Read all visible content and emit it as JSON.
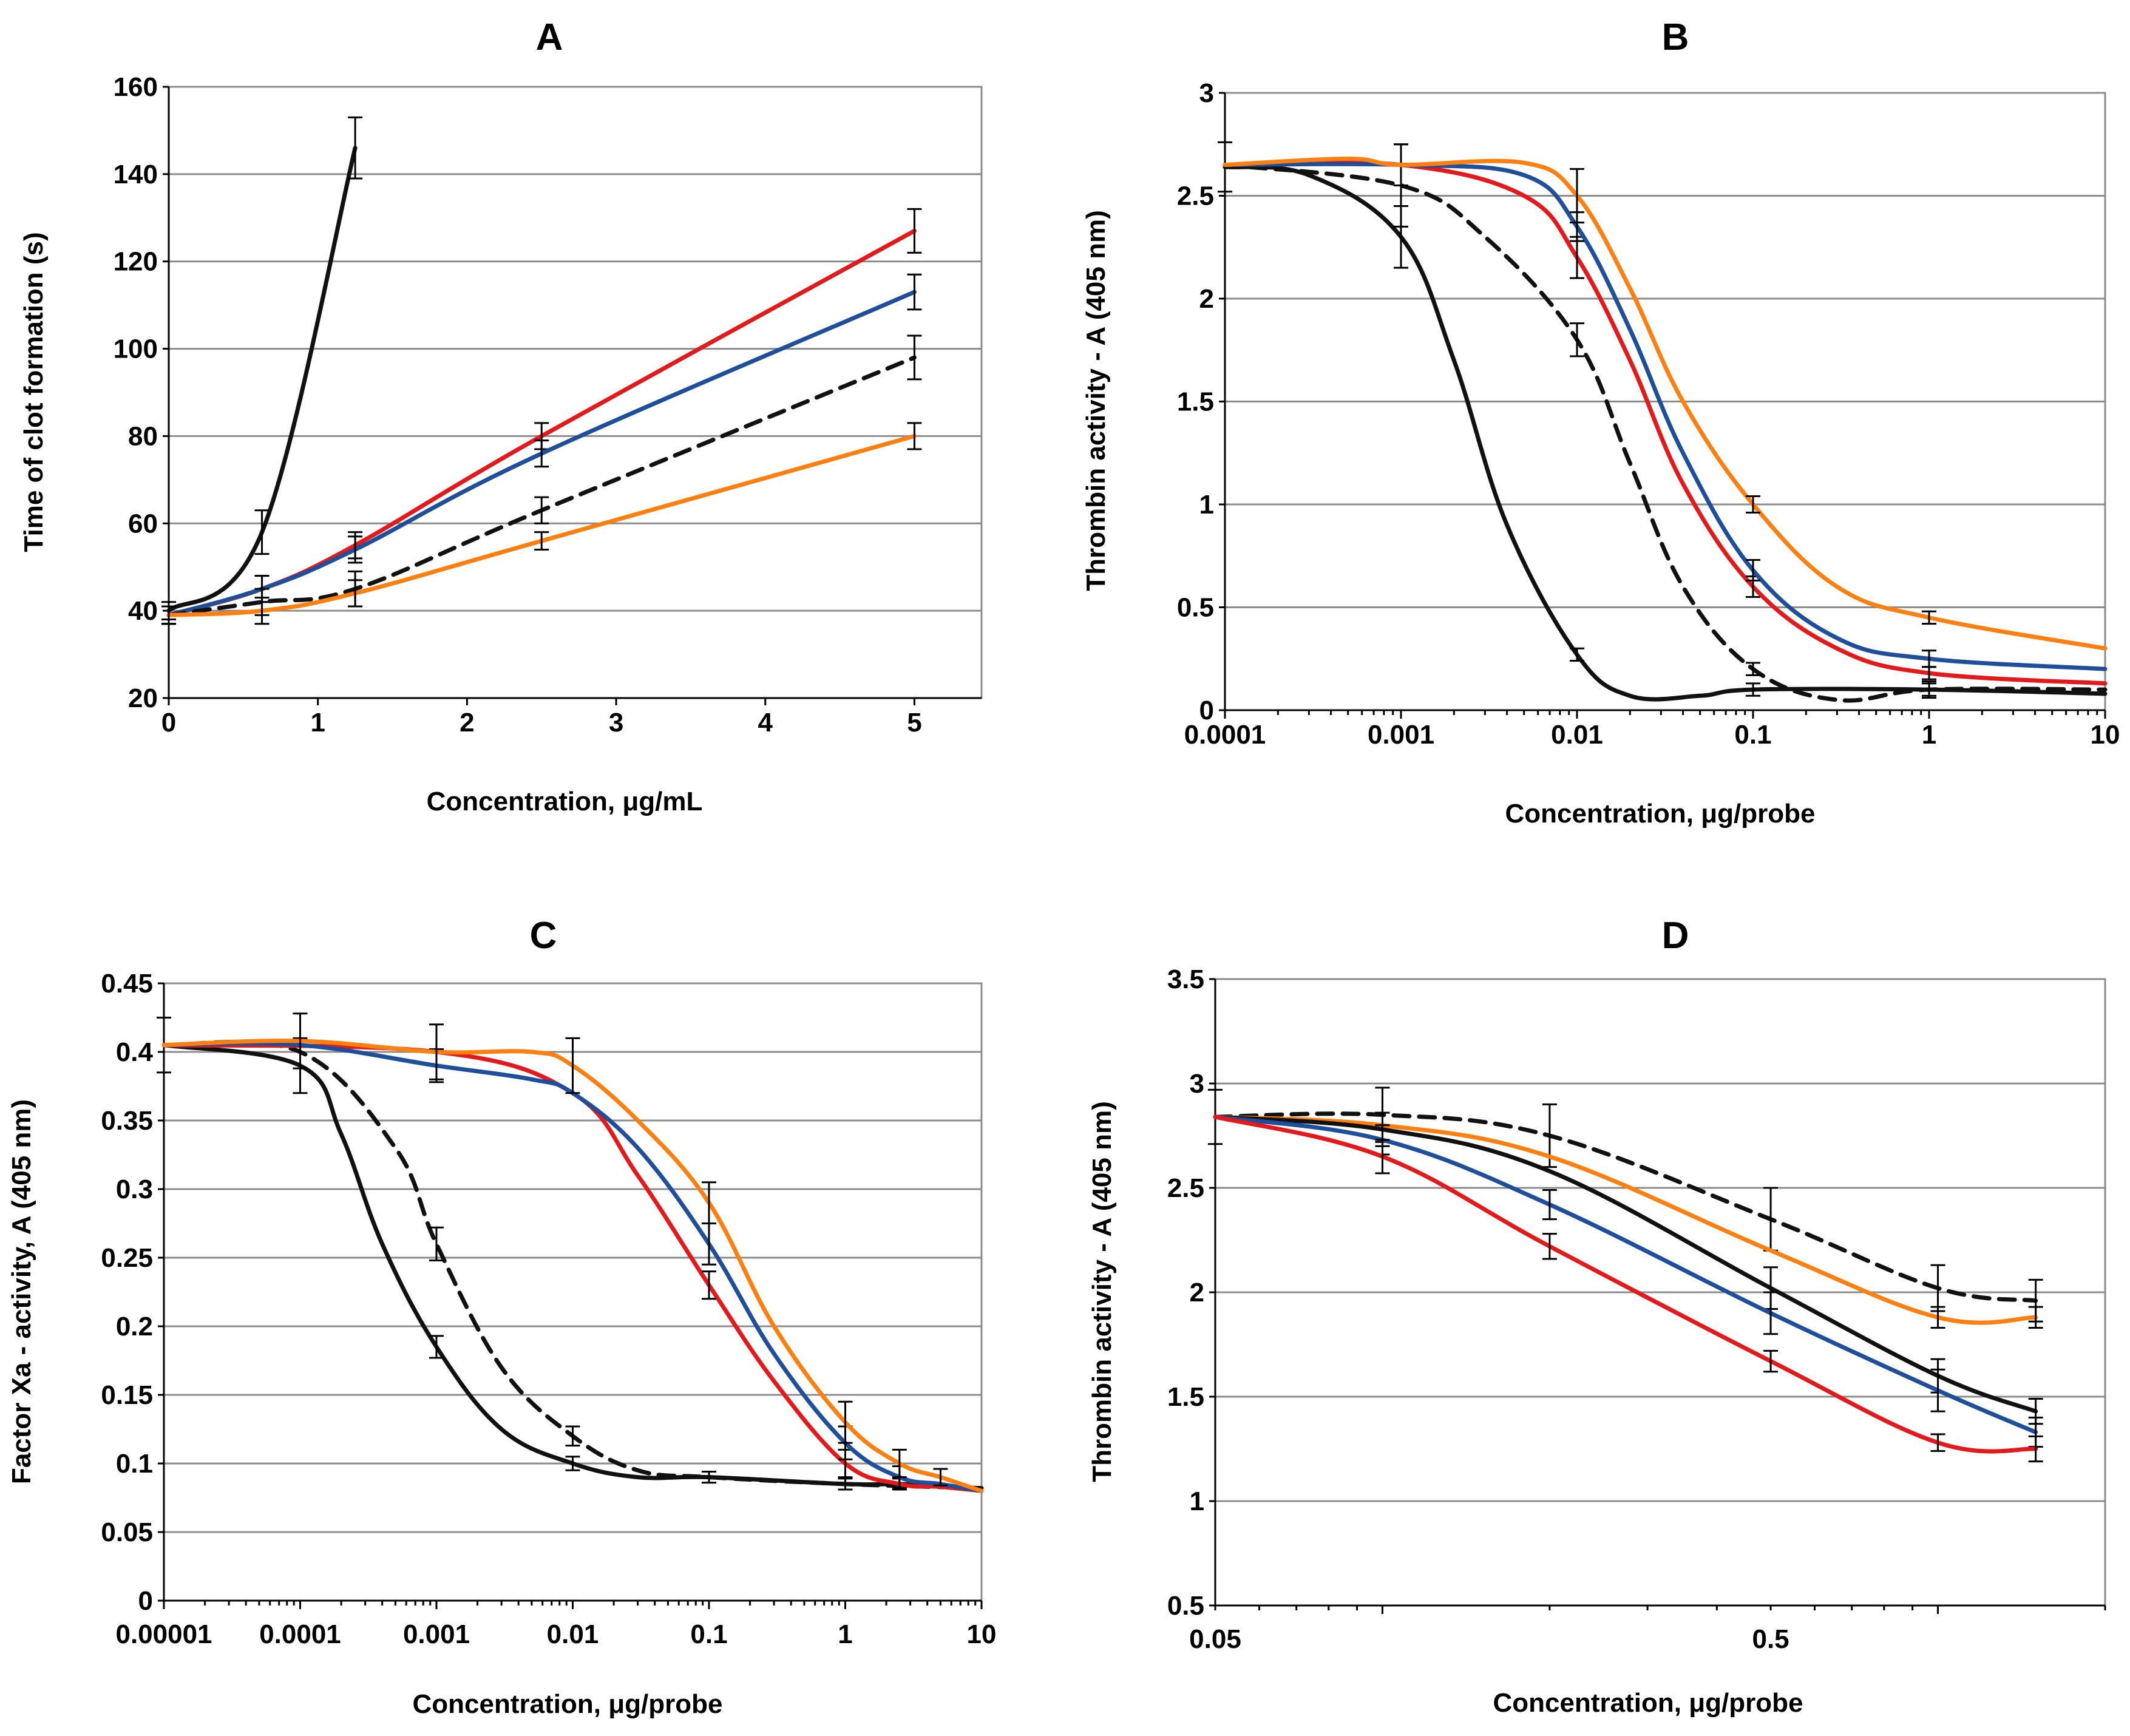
{
  "figure": {
    "panel_labels": [
      "A",
      "B",
      "C",
      "D"
    ]
  },
  "colors": {
    "black": "#111111",
    "red": "#e3191c",
    "blue": "#1f4e9a",
    "orange": "#ff8010",
    "dashed": "#111111"
  },
  "chart_data": [
    {
      "id": "A",
      "type": "line",
      "title": "A",
      "xlabel": "Concentration, μg/mL",
      "ylabel": "Time of clot formation (s)",
      "x_scale": "linear",
      "xlim": [
        0,
        5.45
      ],
      "ylim": [
        20,
        160
      ],
      "yticks": [
        20,
        40,
        60,
        80,
        100,
        120,
        140,
        160
      ],
      "ytick_labels": [
        "20",
        "40",
        "60",
        "80",
        "100",
        "120",
        "140",
        "160"
      ],
      "xticks": [
        0,
        1,
        2,
        3,
        4,
        5
      ],
      "xtick_labels": [
        "0",
        "1",
        "2",
        "3",
        "4",
        "5"
      ],
      "grid": true,
      "series": [
        {
          "name": "black",
          "color": "#111111",
          "dash": false,
          "x": [
            0,
            0.625,
            1.25
          ],
          "y": [
            40,
            58,
            146
          ],
          "err": [
            2,
            5,
            7
          ]
        },
        {
          "name": "red",
          "color": "#e3191c",
          "dash": false,
          "x": [
            0,
            0.625,
            1.25,
            2.5,
            5
          ],
          "y": [
            39,
            45,
            55,
            80,
            127
          ],
          "err": [
            2,
            3,
            3,
            3,
            5
          ]
        },
        {
          "name": "blue",
          "color": "#1f4e9a",
          "dash": false,
          "x": [
            0,
            0.625,
            1.25,
            2.5,
            5
          ],
          "y": [
            39,
            45,
            54,
            76,
            113
          ],
          "err": [
            2,
            3,
            3,
            3,
            4
          ]
        },
        {
          "name": "dashed",
          "color": "#111111",
          "dash": true,
          "x": [
            0,
            0.625,
            1.25,
            2.5,
            5
          ],
          "y": [
            39,
            42,
            45,
            63,
            98
          ],
          "err": [
            2,
            3,
            4,
            3,
            5
          ]
        },
        {
          "name": "orange",
          "color": "#ff8010",
          "dash": false,
          "x": [
            0,
            0.625,
            1.25,
            2.5,
            5
          ],
          "y": [
            39,
            40,
            44,
            56,
            80
          ],
          "err": [
            2,
            3,
            3,
            2,
            3
          ]
        }
      ]
    },
    {
      "id": "B",
      "type": "line",
      "title": "B",
      "xlabel": "Concentration, μg/probe",
      "ylabel": "Thrombin activity - A (405 nm)",
      "x_scale": "log",
      "xlim": [
        0.0001,
        10
      ],
      "ylim": [
        0,
        3
      ],
      "yticks": [
        0,
        0.5,
        1,
        1.5,
        2,
        2.5,
        3
      ],
      "ytick_labels": [
        "0",
        "0.5",
        "1",
        "1.5",
        "2",
        "2.5",
        "3"
      ],
      "xticks": [
        0.0001,
        0.001,
        0.01,
        0.1,
        1,
        10
      ],
      "xtick_labels": [
        "0.0001",
        "0.001",
        "0.01",
        "0.1",
        "1",
        "10"
      ],
      "grid": true,
      "series": [
        {
          "name": "black",
          "color": "#111111",
          "dash": false,
          "x": [
            0.0001,
            0.0003,
            0.001,
            0.002,
            0.004,
            0.01,
            0.02,
            0.05,
            0.1,
            1,
            10
          ],
          "y": [
            2.64,
            2.6,
            2.3,
            1.7,
            0.9,
            0.27,
            0.07,
            0.07,
            0.1,
            0.1,
            0.08
          ],
          "err": [
            0.12,
            0,
            0.15,
            0,
            0,
            0.03,
            0,
            0,
            0.03,
            0.03,
            0
          ]
        },
        {
          "name": "dashed",
          "color": "#111111",
          "dash": true,
          "x": [
            0.0001,
            0.001,
            0.003,
            0.01,
            0.02,
            0.04,
            0.1,
            0.3,
            1,
            10
          ],
          "y": [
            2.65,
            2.55,
            2.3,
            1.8,
            1.2,
            0.6,
            0.2,
            0.05,
            0.1,
            0.1
          ],
          "err": [
            0,
            0.2,
            0,
            0.08,
            0,
            0,
            0.03,
            0,
            0.04,
            0
          ]
        },
        {
          "name": "red",
          "color": "#e3191c",
          "dash": false,
          "x": [
            0.0001,
            0.001,
            0.005,
            0.01,
            0.02,
            0.04,
            0.1,
            0.3,
            1,
            10
          ],
          "y": [
            2.65,
            2.65,
            2.5,
            2.2,
            1.7,
            1.1,
            0.6,
            0.3,
            0.18,
            0.13
          ],
          "err": [
            0,
            0.1,
            0,
            0.1,
            0,
            0,
            0.05,
            0,
            0.03,
            0
          ]
        },
        {
          "name": "blue",
          "color": "#1f4e9a",
          "dash": false,
          "x": [
            0.0001,
            0.001,
            0.005,
            0.01,
            0.02,
            0.04,
            0.1,
            0.3,
            1,
            10
          ],
          "y": [
            2.65,
            2.65,
            2.6,
            2.35,
            1.85,
            1.25,
            0.68,
            0.35,
            0.25,
            0.2
          ],
          "err": [
            0,
            0,
            0,
            0.07,
            0,
            0,
            0.05,
            0,
            0.04,
            0
          ]
        },
        {
          "name": "orange",
          "color": "#ff8010",
          "dash": false,
          "x": [
            0.0001,
            0.0005,
            0.001,
            0.005,
            0.01,
            0.02,
            0.04,
            0.1,
            0.3,
            1,
            10
          ],
          "y": [
            2.65,
            2.68,
            2.65,
            2.66,
            2.5,
            2.05,
            1.5,
            1.0,
            0.6,
            0.45,
            0.3
          ],
          "err": [
            0,
            0,
            0,
            0,
            0.13,
            0,
            0,
            0.04,
            0,
            0.03,
            0
          ]
        }
      ]
    },
    {
      "id": "C",
      "type": "line",
      "title": "C",
      "xlabel": "Concentration, μg/probe",
      "ylabel": "Factor Xa - activity, A (405 nm)",
      "x_scale": "log",
      "xlim": [
        1e-05,
        10
      ],
      "ylim": [
        0,
        0.45
      ],
      "yticks": [
        0,
        0.05,
        0.1,
        0.15,
        0.2,
        0.25,
        0.3,
        0.35,
        0.4,
        0.45
      ],
      "ytick_labels": [
        "0",
        "0.05",
        "0.1",
        "0.15",
        "0.2",
        "0.25",
        "0.3",
        "0.35",
        "0.4",
        "0.45"
      ],
      "xticks": [
        1e-05,
        0.0001,
        0.001,
        0.01,
        0.1,
        1,
        10
      ],
      "xtick_labels": [
        "0.00001",
        "0.0001",
        "0.001",
        "0.01",
        "0.1",
        "1",
        "10"
      ],
      "grid": true,
      "series": [
        {
          "name": "black",
          "color": "#111111",
          "dash": false,
          "x": [
            1e-05,
            0.0001,
            0.0002,
            0.0004,
            0.001,
            0.003,
            0.01,
            0.03,
            0.1,
            1,
            2.5,
            5,
            10
          ],
          "y": [
            0.405,
            0.39,
            0.34,
            0.26,
            0.185,
            0.125,
            0.1,
            0.09,
            0.09,
            0.085,
            0.085,
            0.083,
            0.082
          ],
          "err": [
            0.02,
            0.02,
            0,
            0,
            0.008,
            0,
            0.005,
            0,
            0.004,
            0.004,
            0.004,
            0,
            0
          ]
        },
        {
          "name": "dashed",
          "color": "#111111",
          "dash": true,
          "x": [
            1e-05,
            0.0001,
            0.0005,
            0.001,
            0.003,
            0.01,
            0.03,
            0.1,
            1,
            10
          ],
          "y": [
            0.405,
            0.4,
            0.33,
            0.26,
            0.17,
            0.12,
            0.095,
            0.09,
            0.085,
            0.082
          ],
          "err": [
            0,
            0,
            0,
            0.012,
            0,
            0.007,
            0,
            0,
            0,
            0
          ]
        },
        {
          "name": "red",
          "color": "#e3191c",
          "dash": false,
          "x": [
            1e-05,
            0.001,
            0.01,
            0.03,
            0.1,
            0.3,
            1,
            2.5,
            5,
            10
          ],
          "y": [
            0.405,
            0.4,
            0.37,
            0.31,
            0.23,
            0.16,
            0.1,
            0.085,
            0.083,
            0.08
          ],
          "err": [
            0,
            0,
            0,
            0,
            0.01,
            0,
            0.01,
            0,
            0,
            0
          ]
        },
        {
          "name": "blue",
          "color": "#1f4e9a",
          "dash": false,
          "x": [
            1e-05,
            0.0001,
            0.001,
            0.005,
            0.01,
            0.03,
            0.1,
            0.3,
            1,
            2.5,
            5,
            10
          ],
          "y": [
            0.405,
            0.405,
            0.39,
            0.38,
            0.37,
            0.33,
            0.26,
            0.18,
            0.115,
            0.09,
            0.085,
            0.08
          ],
          "err": [
            0,
            0,
            0.012,
            0,
            0,
            0,
            0.015,
            0,
            0.012,
            0.008,
            0,
            0
          ]
        },
        {
          "name": "orange",
          "color": "#ff8010",
          "dash": false,
          "x": [
            1e-05,
            0.0001,
            0.001,
            0.005,
            0.01,
            0.03,
            0.1,
            0.3,
            1,
            2.5,
            5,
            10
          ],
          "y": [
            0.405,
            0.408,
            0.4,
            0.4,
            0.39,
            0.35,
            0.29,
            0.2,
            0.13,
            0.1,
            0.09,
            0.08
          ],
          "err": [
            0,
            0.02,
            0.02,
            0,
            0.02,
            0,
            0.015,
            0,
            0.015,
            0.01,
            0.006,
            0
          ]
        }
      ]
    },
    {
      "id": "D",
      "type": "line",
      "title": "D",
      "xlabel": "Concentration, μg/probe",
      "ylabel": "Thrombin activity - A (405 nm)",
      "x_scale": "log",
      "xlim": [
        0.05,
        2
      ],
      "ylim": [
        0.5,
        3.5
      ],
      "yticks": [
        0.5,
        1,
        1.5,
        2,
        2.5,
        3,
        3.5
      ],
      "ytick_labels": [
        "0.5",
        "1",
        "1.5",
        "2",
        "2.5",
        "3",
        "3.5"
      ],
      "xticks": [
        0.05,
        0.5
      ],
      "xtick_labels": [
        "0.05",
        "0.5"
      ],
      "grid": true,
      "series": [
        {
          "name": "dashed",
          "color": "#111111",
          "dash": true,
          "x": [
            0.05,
            0.1,
            0.2,
            0.5,
            1,
            1.5
          ],
          "y": [
            2.84,
            2.85,
            2.75,
            2.35,
            2.02,
            1.96
          ],
          "err": [
            0.13,
            0.13,
            0.15,
            0.15,
            0.11,
            0.1
          ]
        },
        {
          "name": "orange",
          "color": "#ff8010",
          "dash": false,
          "x": [
            0.05,
            0.1,
            0.2,
            0.5,
            1,
            1.5
          ],
          "y": [
            2.84,
            2.8,
            2.65,
            2.2,
            1.88,
            1.88
          ],
          "err": [
            0,
            0,
            0,
            0,
            0.05,
            0.05
          ]
        },
        {
          "name": "black",
          "color": "#111111",
          "dash": false,
          "x": [
            0.05,
            0.1,
            0.2,
            0.5,
            1,
            1.5
          ],
          "y": [
            2.84,
            2.78,
            2.58,
            2.02,
            1.6,
            1.43
          ],
          "err": [
            0,
            0.08,
            0,
            0.1,
            0.08,
            0.06
          ]
        },
        {
          "name": "blue",
          "color": "#1f4e9a",
          "dash": false,
          "x": [
            0.05,
            0.1,
            0.2,
            0.5,
            1,
            1.5
          ],
          "y": [
            2.84,
            2.73,
            2.42,
            1.9,
            1.53,
            1.33
          ],
          "err": [
            0,
            0.07,
            0.07,
            0.1,
            0.1,
            0.07
          ]
        },
        {
          "name": "red",
          "color": "#e3191c",
          "dash": false,
          "x": [
            0.05,
            0.1,
            0.2,
            0.5,
            1,
            1.5
          ],
          "y": [
            2.84,
            2.65,
            2.22,
            1.67,
            1.28,
            1.25
          ],
          "err": [
            0,
            0.08,
            0.06,
            0.05,
            0.04,
            0.06
          ]
        }
      ]
    }
  ]
}
